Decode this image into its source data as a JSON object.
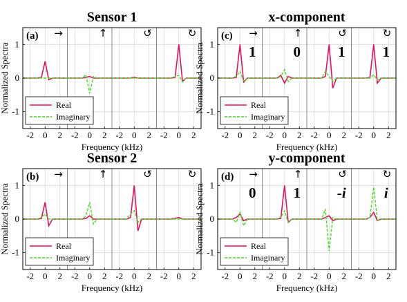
{
  "chart_data": [
    {
      "type": "line",
      "panel_label": "(a)",
      "title": "Sensor 1",
      "xlabel": "Frequency (kHz)",
      "ylabel": "Normalized Spectra",
      "xlim": [
        -3,
        3
      ],
      "ylim": [
        -1.5,
        1.5
      ],
      "grid": true,
      "legend": {
        "location": "bottom-left",
        "entries": [
          "Real",
          "Imaginary"
        ]
      },
      "subplots": [
        {
          "arrow": "→",
          "annotation": "",
          "series": [
            {
              "name": "Real",
              "x": [
                -3,
                -2,
                -1,
                -0.5,
                0,
                0.5,
                1,
                2,
                3
              ],
              "y": [
                0,
                0,
                0,
                0.02,
                0.5,
                -0.05,
                0,
                0,
                0
              ]
            },
            {
              "name": "Imaginary",
              "x": [
                -3,
                -2,
                -1,
                -0.5,
                0,
                0.5,
                1,
                2,
                3
              ],
              "y": [
                0,
                0,
                0,
                0,
                0,
                0,
                0,
                0,
                0
              ]
            }
          ]
        },
        {
          "arrow": "↑",
          "annotation": "",
          "series": [
            {
              "name": "Real",
              "x": [
                -3,
                -2,
                -1,
                -0.5,
                0,
                0.5,
                1,
                2,
                3
              ],
              "y": [
                0,
                0,
                0,
                0.02,
                0.05,
                0,
                0,
                0,
                0
              ]
            },
            {
              "name": "Imaginary",
              "x": [
                -3,
                -2,
                -1,
                -0.5,
                0,
                0.5,
                1,
                2,
                3
              ],
              "y": [
                0,
                0,
                0,
                0.1,
                -0.45,
                0.05,
                0,
                0,
                0
              ]
            }
          ]
        },
        {
          "arrow": "↺",
          "annotation": "",
          "series": [
            {
              "name": "Real",
              "x": [
                -3,
                -2,
                -1,
                -0.5,
                0,
                0.5,
                1,
                2,
                3
              ],
              "y": [
                0,
                0,
                0,
                0,
                0.02,
                0,
                0,
                0,
                0
              ]
            },
            {
              "name": "Imaginary",
              "x": [
                -3,
                -2,
                -1,
                -0.5,
                0,
                0.5,
                1,
                2,
                3
              ],
              "y": [
                0,
                0,
                0,
                0,
                0,
                0,
                0,
                0,
                0
              ]
            }
          ]
        },
        {
          "arrow": "↻",
          "annotation": "",
          "series": [
            {
              "name": "Real",
              "x": [
                -3,
                -2,
                -1,
                -0.5,
                0,
                0.5,
                1,
                2,
                3
              ],
              "y": [
                0,
                0,
                0,
                0.02,
                1.0,
                -0.1,
                0,
                0,
                0
              ]
            },
            {
              "name": "Imaginary",
              "x": [
                -3,
                -2,
                -1,
                -0.5,
                0,
                0.5,
                1,
                2,
                3
              ],
              "y": [
                0,
                0,
                0,
                0.05,
                0.08,
                -0.12,
                0,
                0,
                0
              ]
            }
          ]
        }
      ]
    },
    {
      "type": "line",
      "panel_label": "(c)",
      "title": "x-component",
      "xlabel": "Frequency (kHz)",
      "ylabel": "Normalized Spectra",
      "xlim": [
        -3,
        3
      ],
      "ylim": [
        -1.5,
        1.5
      ],
      "grid": true,
      "legend": {
        "location": "bottom-left",
        "entries": [
          "Real",
          "Imaginary"
        ]
      },
      "subplots": [
        {
          "arrow": "→",
          "annotation": "1",
          "series": [
            {
              "name": "Real",
              "x": [
                -3,
                -2,
                -1,
                -0.5,
                0,
                0.5,
                1,
                2,
                3
              ],
              "y": [
                0,
                0,
                0,
                0.02,
                1.0,
                -0.12,
                0,
                0,
                0
              ]
            },
            {
              "name": "Imaginary",
              "x": [
                -3,
                -2,
                -1,
                -0.5,
                0,
                0.5,
                1,
                2,
                3
              ],
              "y": [
                0,
                0,
                0,
                0.05,
                0.2,
                -0.1,
                0,
                0,
                0
              ]
            }
          ]
        },
        {
          "arrow": "↑",
          "annotation": "0",
          "series": [
            {
              "name": "Real",
              "x": [
                -3,
                -2,
                -1,
                -0.5,
                0,
                0.5,
                1,
                2,
                3
              ],
              "y": [
                0,
                0,
                0,
                0.08,
                -0.15,
                0.05,
                0,
                0,
                0
              ]
            },
            {
              "name": "Imaginary",
              "x": [
                -3,
                -2,
                -1,
                -0.5,
                0,
                0.5,
                1,
                2,
                3
              ],
              "y": [
                0,
                0,
                0,
                0.05,
                0.25,
                -0.1,
                0,
                0,
                0
              ]
            }
          ]
        },
        {
          "arrow": "↺",
          "annotation": "1",
          "series": [
            {
              "name": "Real",
              "x": [
                -3,
                -2,
                -1,
                -0.5,
                0,
                0.5,
                1,
                2,
                3
              ],
              "y": [
                0,
                0,
                0,
                0.05,
                1.0,
                -0.3,
                0,
                0,
                0
              ]
            },
            {
              "name": "Imaginary",
              "x": [
                -3,
                -2,
                -1,
                -0.5,
                0,
                0.5,
                1,
                2,
                3
              ],
              "y": [
                0,
                0,
                0,
                0.2,
                0.05,
                -0.1,
                0,
                0,
                0
              ]
            }
          ]
        },
        {
          "arrow": "↻",
          "annotation": "1",
          "series": [
            {
              "name": "Real",
              "x": [
                -3,
                -2,
                -1,
                -0.5,
                0,
                0.5,
                1,
                2,
                3
              ],
              "y": [
                0,
                0,
                0,
                0.02,
                1.0,
                -0.15,
                0,
                0,
                0
              ]
            },
            {
              "name": "Imaginary",
              "x": [
                -3,
                -2,
                -1,
                -0.5,
                0,
                0.5,
                1,
                2,
                3
              ],
              "y": [
                0,
                0,
                0,
                0,
                0.1,
                -0.05,
                0,
                0,
                0
              ]
            }
          ]
        }
      ]
    },
    {
      "type": "line",
      "panel_label": "(b)",
      "title": "Sensor 2",
      "xlabel": "Frequency (kHz)",
      "ylabel": "Normalized Spectra",
      "xlim": [
        -3,
        3
      ],
      "ylim": [
        -1.5,
        1.5
      ],
      "grid": true,
      "legend": {
        "location": "bottom-left",
        "entries": [
          "Real",
          "Imaginary"
        ]
      },
      "subplots": [
        {
          "arrow": "→",
          "annotation": "",
          "series": [
            {
              "name": "Real",
              "x": [
                -3,
                -2,
                -1,
                -0.5,
                0,
                0.5,
                1,
                2,
                3
              ],
              "y": [
                0,
                0,
                0,
                0.02,
                0.5,
                -0.2,
                0,
                0,
                0
              ]
            },
            {
              "name": "Imaginary",
              "x": [
                -3,
                -2,
                -1,
                -0.5,
                0,
                0.5,
                1,
                2,
                3
              ],
              "y": [
                0,
                0,
                0,
                0.05,
                0.15,
                0,
                0,
                0,
                0
              ]
            }
          ]
        },
        {
          "arrow": "↑",
          "annotation": "",
          "series": [
            {
              "name": "Real",
              "x": [
                -3,
                -2,
                -1,
                -0.5,
                0,
                0.5,
                1,
                2,
                3
              ],
              "y": [
                0,
                0,
                0,
                0.02,
                0.1,
                0,
                0,
                0,
                0
              ]
            },
            {
              "name": "Imaginary",
              "x": [
                -3,
                -2,
                -1,
                -0.5,
                0,
                0.5,
                1,
                2,
                3
              ],
              "y": [
                0,
                0,
                0,
                0.1,
                0.5,
                -0.15,
                0,
                0,
                0
              ]
            }
          ]
        },
        {
          "arrow": "↺",
          "annotation": "",
          "series": [
            {
              "name": "Real",
              "x": [
                -3,
                -2,
                -1,
                -0.5,
                0,
                0.5,
                1,
                2,
                3
              ],
              "y": [
                0,
                0,
                0,
                0.05,
                1.0,
                -0.35,
                0,
                0,
                0
              ]
            },
            {
              "name": "Imaginary",
              "x": [
                -3,
                -2,
                -1,
                -0.5,
                0,
                0.5,
                1,
                2,
                3
              ],
              "y": [
                0,
                0,
                0,
                0.15,
                0.25,
                -0.1,
                0,
                0,
                0
              ]
            }
          ]
        },
        {
          "arrow": "↻",
          "annotation": "",
          "series": [
            {
              "name": "Real",
              "x": [
                -3,
                -2,
                -1,
                -0.5,
                0,
                0.5,
                1,
                2,
                3
              ],
              "y": [
                0,
                0,
                0,
                0.02,
                0.05,
                0,
                0,
                0,
                0
              ]
            },
            {
              "name": "Imaginary",
              "x": [
                -3,
                -2,
                -1,
                -0.5,
                0,
                0.5,
                1,
                2,
                3
              ],
              "y": [
                0,
                0,
                0,
                0,
                0,
                0,
                0,
                0,
                0
              ]
            }
          ]
        }
      ]
    },
    {
      "type": "line",
      "panel_label": "(d)",
      "title": "y-component",
      "xlabel": "Frequency (kHz)",
      "ylabel": "Normalized Spectra",
      "xlim": [
        -3,
        3
      ],
      "ylim": [
        -1.5,
        1.5
      ],
      "grid": true,
      "legend": {
        "location": "bottom-left",
        "entries": [
          "Real",
          "Imaginary"
        ]
      },
      "subplots": [
        {
          "arrow": "→",
          "annotation": "0",
          "series": [
            {
              "name": "Real",
              "x": [
                -3,
                -2,
                -1,
                -0.5,
                0,
                0.5,
                1,
                2,
                3
              ],
              "y": [
                0,
                0,
                0,
                0.05,
                0.15,
                -0.05,
                0,
                0,
                0
              ]
            },
            {
              "name": "Imaginary",
              "x": [
                -3,
                -2,
                -1,
                -0.5,
                0,
                0.5,
                1,
                2,
                3
              ],
              "y": [
                0,
                0,
                0,
                -0.1,
                0.2,
                -0.2,
                0,
                0,
                0
              ]
            }
          ]
        },
        {
          "arrow": "↑",
          "annotation": "1",
          "series": [
            {
              "name": "Real",
              "x": [
                -3,
                -2,
                -1,
                -0.5,
                0,
                0.5,
                1,
                2,
                3
              ],
              "y": [
                0,
                0,
                0,
                0.02,
                1.0,
                -0.1,
                0,
                0,
                0
              ]
            },
            {
              "name": "Imaginary",
              "x": [
                -3,
                -2,
                -1,
                -0.5,
                0,
                0.5,
                1,
                2,
                3
              ],
              "y": [
                0,
                0,
                0,
                0.05,
                0.25,
                -0.1,
                0,
                0,
                0
              ]
            }
          ]
        },
        {
          "arrow": "↺",
          "annotation": "-i",
          "series": [
            {
              "name": "Real",
              "x": [
                -3,
                -2,
                -1,
                -0.5,
                0,
                0.5,
                1,
                2,
                3
              ],
              "y": [
                0,
                0,
                0,
                0.05,
                0.1,
                -0.05,
                0,
                0,
                0
              ]
            },
            {
              "name": "Imaginary",
              "x": [
                -3,
                -2,
                -1,
                -0.5,
                0,
                0.5,
                1,
                2,
                3
              ],
              "y": [
                0,
                0,
                0,
                0.3,
                -0.95,
                0.05,
                0,
                0,
                0
              ]
            }
          ]
        },
        {
          "arrow": "↻",
          "annotation": "i",
          "series": [
            {
              "name": "Real",
              "x": [
                -3,
                -2,
                -1,
                -0.5,
                0,
                0.5,
                1,
                2,
                3
              ],
              "y": [
                0,
                0,
                0,
                0.05,
                0.2,
                -0.05,
                0,
                0,
                0
              ]
            },
            {
              "name": "Imaginary",
              "x": [
                -3,
                -2,
                -1,
                -0.5,
                0,
                0.5,
                1,
                2,
                3
              ],
              "y": [
                0,
                0,
                0,
                0.05,
                0.95,
                -0.05,
                0,
                0,
                0
              ]
            }
          ]
        }
      ]
    }
  ],
  "colors": {
    "real": "#e0115f",
    "imaginary": "#44dd22",
    "grid": "#d9d9d9",
    "axis": "#000000",
    "separator": "#888888"
  },
  "yticks": [
    "1",
    "0",
    "-1"
  ],
  "xticks": [
    "-2",
    "0",
    "2"
  ]
}
